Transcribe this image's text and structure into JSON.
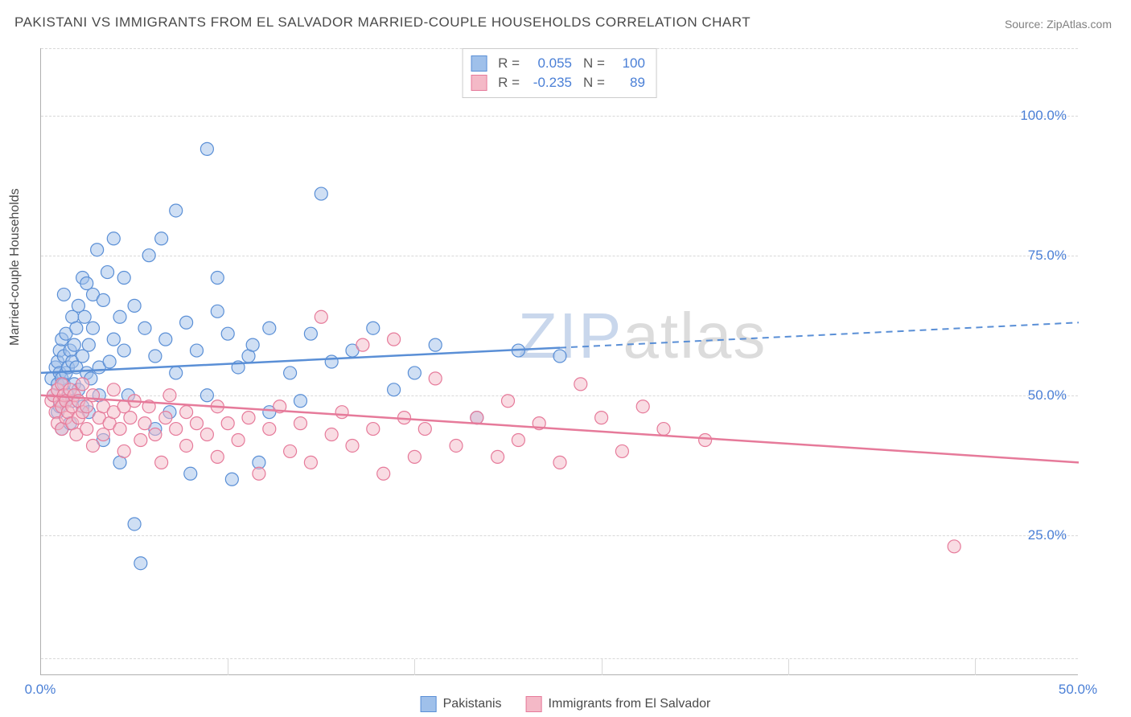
{
  "title": "PAKISTANI VS IMMIGRANTS FROM EL SALVADOR MARRIED-COUPLE HOUSEHOLDS CORRELATION CHART",
  "source": "Source: ZipAtlas.com",
  "y_axis_title": "Married-couple Households",
  "watermark_pre": "ZIP",
  "watermark_post": "atlas",
  "chart": {
    "type": "scatter",
    "xlim": [
      0,
      50
    ],
    "ylim": [
      0,
      112
    ],
    "x_ticks": [
      0,
      50
    ],
    "x_tick_labels": [
      "0.0%",
      "50.0%"
    ],
    "x_minor_ticks": [
      9,
      18,
      27,
      36,
      45
    ],
    "y_ticks": [
      25,
      50,
      75,
      100
    ],
    "y_tick_labels": [
      "25.0%",
      "50.0%",
      "75.0%",
      "100.0%"
    ],
    "y_gridlines": [
      3,
      25,
      50,
      75,
      100,
      112
    ],
    "background_color": "#ffffff",
    "grid_color": "#d8d8d8",
    "marker_radius": 8,
    "marker_opacity": 0.5,
    "series": [
      {
        "name": "Pakistanis",
        "fill": "#9fc0ea",
        "stroke": "#5a8fd6",
        "R": "0.055",
        "N": "100",
        "regression": {
          "x1": 0,
          "y1": 54,
          "x2": 50,
          "y2": 63,
          "solid_until_x": 25
        },
        "points": [
          [
            0.5,
            53
          ],
          [
            0.6,
            50
          ],
          [
            0.7,
            55
          ],
          [
            0.8,
            52
          ],
          [
            0.8,
            47
          ],
          [
            0.8,
            56
          ],
          [
            0.9,
            54
          ],
          [
            0.9,
            58
          ],
          [
            0.9,
            48
          ],
          [
            1.0,
            53
          ],
          [
            1.0,
            60
          ],
          [
            1.0,
            44
          ],
          [
            1.1,
            57
          ],
          [
            1.1,
            52
          ],
          [
            1.1,
            68
          ],
          [
            1.2,
            54
          ],
          [
            1.2,
            49
          ],
          [
            1.2,
            61
          ],
          [
            1.3,
            55
          ],
          [
            1.3,
            50
          ],
          [
            1.4,
            58
          ],
          [
            1.4,
            45
          ],
          [
            1.5,
            56
          ],
          [
            1.5,
            64
          ],
          [
            1.5,
            49
          ],
          [
            1.6,
            59
          ],
          [
            1.6,
            52
          ],
          [
            1.7,
            62
          ],
          [
            1.7,
            55
          ],
          [
            1.8,
            66
          ],
          [
            1.8,
            51
          ],
          [
            2.0,
            71
          ],
          [
            2.0,
            57
          ],
          [
            2.0,
            48
          ],
          [
            2.1,
            64
          ],
          [
            2.2,
            54
          ],
          [
            2.2,
            70
          ],
          [
            2.3,
            59
          ],
          [
            2.3,
            47
          ],
          [
            2.4,
            53
          ],
          [
            2.5,
            68
          ],
          [
            2.5,
            62
          ],
          [
            2.7,
            76
          ],
          [
            2.8,
            55
          ],
          [
            2.8,
            50
          ],
          [
            3.0,
            67
          ],
          [
            3.0,
            42
          ],
          [
            3.2,
            72
          ],
          [
            3.3,
            56
          ],
          [
            3.5,
            60
          ],
          [
            3.5,
            78
          ],
          [
            3.8,
            64
          ],
          [
            3.8,
            38
          ],
          [
            4.0,
            58
          ],
          [
            4.0,
            71
          ],
          [
            4.2,
            50
          ],
          [
            4.5,
            66
          ],
          [
            4.5,
            27
          ],
          [
            4.8,
            20
          ],
          [
            5.0,
            62
          ],
          [
            5.2,
            75
          ],
          [
            5.5,
            57
          ],
          [
            5.5,
            44
          ],
          [
            5.8,
            78
          ],
          [
            6.0,
            60
          ],
          [
            6.2,
            47
          ],
          [
            6.5,
            54
          ],
          [
            6.5,
            83
          ],
          [
            7.0,
            63
          ],
          [
            7.2,
            36
          ],
          [
            7.5,
            58
          ],
          [
            8.0,
            94
          ],
          [
            8.0,
            50
          ],
          [
            8.5,
            71
          ],
          [
            8.5,
            65
          ],
          [
            9.0,
            61
          ],
          [
            9.2,
            35
          ],
          [
            9.5,
            55
          ],
          [
            10.0,
            57
          ],
          [
            10.2,
            59
          ],
          [
            10.5,
            38
          ],
          [
            11.0,
            47
          ],
          [
            11.0,
            62
          ],
          [
            12.0,
            54
          ],
          [
            12.5,
            49
          ],
          [
            13.0,
            61
          ],
          [
            13.5,
            86
          ],
          [
            14.0,
            56
          ],
          [
            15.0,
            58
          ],
          [
            16.0,
            62
          ],
          [
            17.0,
            51
          ],
          [
            18.0,
            54
          ],
          [
            19.0,
            59
          ],
          [
            21.0,
            46
          ],
          [
            23.0,
            58
          ],
          [
            25.0,
            57
          ]
        ]
      },
      {
        "name": "Immigrants from El Salvador",
        "fill": "#f4b9c7",
        "stroke": "#e67a9a",
        "R": "-0.235",
        "N": "89",
        "regression": {
          "x1": 0,
          "y1": 50,
          "x2": 50,
          "y2": 38,
          "solid_until_x": 50
        },
        "points": [
          [
            0.5,
            49
          ],
          [
            0.6,
            50
          ],
          [
            0.7,
            47
          ],
          [
            0.8,
            51
          ],
          [
            0.8,
            45
          ],
          [
            0.9,
            49
          ],
          [
            1.0,
            48
          ],
          [
            1.0,
            52
          ],
          [
            1.0,
            44
          ],
          [
            1.1,
            50
          ],
          [
            1.2,
            46
          ],
          [
            1.2,
            49
          ],
          [
            1.3,
            47
          ],
          [
            1.4,
            51
          ],
          [
            1.5,
            45
          ],
          [
            1.5,
            48
          ],
          [
            1.6,
            50
          ],
          [
            1.7,
            43
          ],
          [
            1.8,
            49
          ],
          [
            1.8,
            46
          ],
          [
            2.0,
            47
          ],
          [
            2.0,
            52
          ],
          [
            2.2,
            44
          ],
          [
            2.2,
            48
          ],
          [
            2.5,
            50
          ],
          [
            2.5,
            41
          ],
          [
            2.8,
            46
          ],
          [
            3.0,
            48
          ],
          [
            3.0,
            43
          ],
          [
            3.3,
            45
          ],
          [
            3.5,
            47
          ],
          [
            3.5,
            51
          ],
          [
            3.8,
            44
          ],
          [
            4.0,
            40
          ],
          [
            4.0,
            48
          ],
          [
            4.3,
            46
          ],
          [
            4.5,
            49
          ],
          [
            4.8,
            42
          ],
          [
            5.0,
            45
          ],
          [
            5.2,
            48
          ],
          [
            5.5,
            43
          ],
          [
            5.8,
            38
          ],
          [
            6.0,
            46
          ],
          [
            6.2,
            50
          ],
          [
            6.5,
            44
          ],
          [
            7.0,
            41
          ],
          [
            7.0,
            47
          ],
          [
            7.5,
            45
          ],
          [
            8.0,
            43
          ],
          [
            8.5,
            48
          ],
          [
            8.5,
            39
          ],
          [
            9.0,
            45
          ],
          [
            9.5,
            42
          ],
          [
            10.0,
            46
          ],
          [
            10.5,
            36
          ],
          [
            11.0,
            44
          ],
          [
            11.5,
            48
          ],
          [
            12.0,
            40
          ],
          [
            12.5,
            45
          ],
          [
            13.0,
            38
          ],
          [
            13.5,
            64
          ],
          [
            14.0,
            43
          ],
          [
            14.5,
            47
          ],
          [
            15.0,
            41
          ],
          [
            15.5,
            59
          ],
          [
            16.0,
            44
          ],
          [
            16.5,
            36
          ],
          [
            17.0,
            60
          ],
          [
            17.5,
            46
          ],
          [
            18.0,
            39
          ],
          [
            18.5,
            44
          ],
          [
            19.0,
            53
          ],
          [
            20.0,
            41
          ],
          [
            21.0,
            46
          ],
          [
            22.0,
            39
          ],
          [
            22.5,
            49
          ],
          [
            23.0,
            42
          ],
          [
            24.0,
            45
          ],
          [
            25.0,
            38
          ],
          [
            26.0,
            52
          ],
          [
            27.0,
            46
          ],
          [
            28.0,
            40
          ],
          [
            29.0,
            48
          ],
          [
            30.0,
            44
          ],
          [
            32.0,
            42
          ],
          [
            44.0,
            23
          ]
        ]
      }
    ]
  },
  "legend": {
    "series1_label": "Pakistanis",
    "series2_label": "Immigrants from El Salvador"
  },
  "stats_labels": {
    "R": "R =",
    "N": "N ="
  }
}
